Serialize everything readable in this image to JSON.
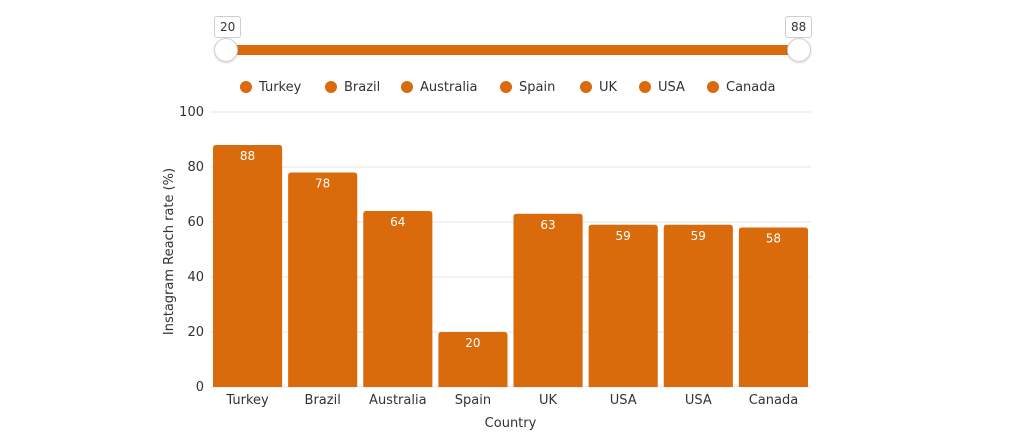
{
  "slider": {
    "min_label": "20",
    "max_label": "88",
    "min_value": 20,
    "max_value": 88
  },
  "colors": {
    "bar": "#d96b0c",
    "grid": "#e6e6e6",
    "text": "#333333"
  },
  "legend": [
    "Turkey",
    "Brazil",
    "Australia",
    "Spain",
    "UK",
    "USA",
    "Canada"
  ],
  "chart_data": {
    "type": "bar",
    "categories": [
      "Turkey",
      "Brazil",
      "Australia",
      "Spain",
      "UK",
      "USA",
      "USA",
      "Canada"
    ],
    "values": [
      88,
      78,
      64,
      20,
      63,
      59,
      59,
      58
    ],
    "xlabel": "Country",
    "ylabel": "Instagram Reach rate (%)",
    "ylim": [
      0,
      100
    ],
    "yticks": [
      0,
      20,
      40,
      60,
      80,
      100
    ],
    "grid": true,
    "data_labels": true
  }
}
